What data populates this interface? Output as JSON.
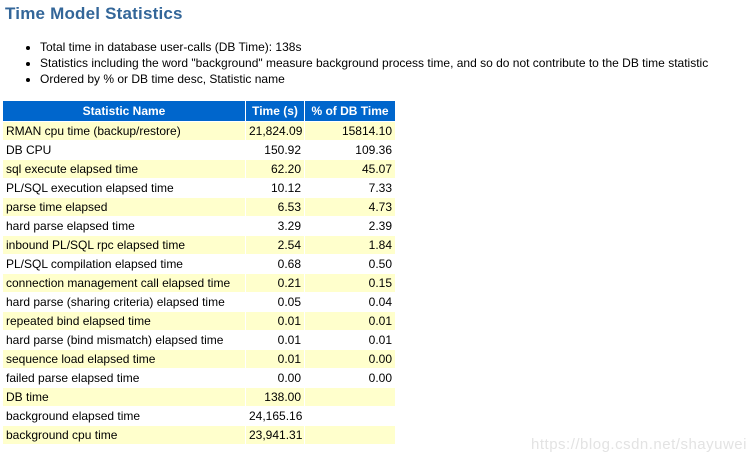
{
  "page": {
    "title": "Time Model Statistics",
    "title_color": "#336699",
    "bullets": [
      "Total time in database user-calls (DB Time): 138s",
      "Statistics including the word \"background\" measure background process time, and so do not contribute to the DB time statistic",
      "Ordered by % or DB time desc, Statistic name"
    ],
    "watermark": "https://blog.csdn.net/shayuwei"
  },
  "colors": {
    "header_bg": "#0066CC",
    "header_text": "#FFFFFF",
    "row_alt_bg": "#FFFFCC",
    "row_bg": "#FFFFFF",
    "title": "#336699",
    "watermark": "#E3E3E3"
  },
  "table": {
    "columns": [
      "Statistic Name",
      "Time (s)",
      "% of DB Time"
    ],
    "rows": [
      {
        "name": "RMAN cpu time (backup/restore)",
        "time": "21,824.09",
        "pct": "15814.10"
      },
      {
        "name": "DB CPU",
        "time": "150.92",
        "pct": "109.36"
      },
      {
        "name": "sql execute elapsed time",
        "time": "62.20",
        "pct": "45.07"
      },
      {
        "name": "PL/SQL execution elapsed time",
        "time": "10.12",
        "pct": "7.33"
      },
      {
        "name": "parse time elapsed",
        "time": "6.53",
        "pct": "4.73"
      },
      {
        "name": "hard parse elapsed time",
        "time": "3.29",
        "pct": "2.39"
      },
      {
        "name": "inbound PL/SQL rpc elapsed time",
        "time": "2.54",
        "pct": "1.84"
      },
      {
        "name": "PL/SQL compilation elapsed time",
        "time": "0.68",
        "pct": "0.50"
      },
      {
        "name": "connection management call elapsed time",
        "time": "0.21",
        "pct": "0.15"
      },
      {
        "name": "hard parse (sharing criteria) elapsed time",
        "time": "0.05",
        "pct": "0.04"
      },
      {
        "name": "repeated bind elapsed time",
        "time": "0.01",
        "pct": "0.01"
      },
      {
        "name": "hard parse (bind mismatch) elapsed time",
        "time": "0.01",
        "pct": "0.01"
      },
      {
        "name": "sequence load elapsed time",
        "time": "0.01",
        "pct": "0.00"
      },
      {
        "name": "failed parse elapsed time",
        "time": "0.00",
        "pct": "0.00"
      },
      {
        "name": "DB time",
        "time": "138.00",
        "pct": ""
      },
      {
        "name": "background elapsed time",
        "time": "24,165.16",
        "pct": ""
      },
      {
        "name": "background cpu time",
        "time": "23,941.31",
        "pct": ""
      }
    ]
  }
}
